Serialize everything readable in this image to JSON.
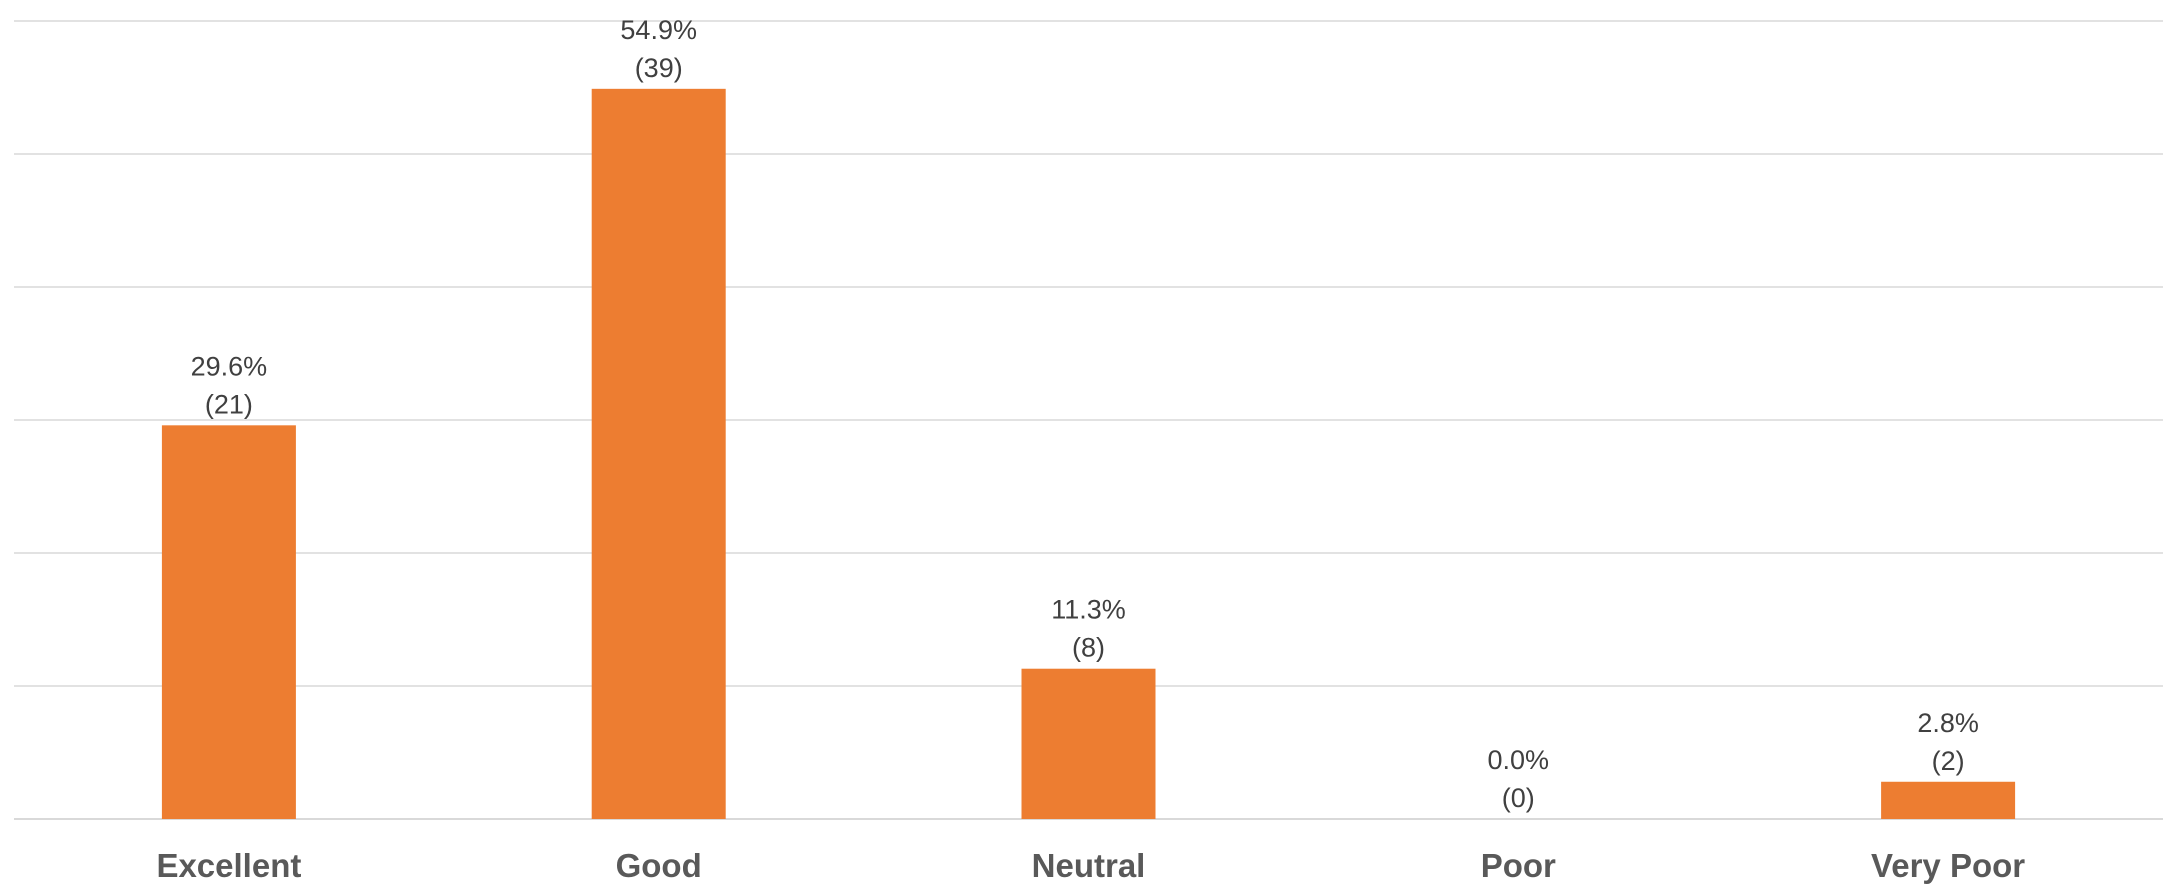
{
  "chart_data": {
    "type": "bar",
    "categories": [
      "Excellent",
      "Good",
      "Neutral",
      "Poor",
      "Very Poor"
    ],
    "values": [
      29.6,
      54.9,
      11.3,
      0.0,
      2.8
    ],
    "counts": [
      21,
      39,
      8,
      0,
      2
    ],
    "value_labels": [
      "29.6%",
      "54.9%",
      "11.3%",
      "0.0%",
      "2.8%"
    ],
    "count_labels": [
      "(21)",
      "(39)",
      "(8)",
      "(0)",
      "(2)"
    ],
    "title": "",
    "xlabel": "",
    "ylabel": "",
    "ylim": [
      0,
      60
    ],
    "grid": true,
    "y_axis_labels_shown": false,
    "bar_color": "#ED7D31"
  }
}
